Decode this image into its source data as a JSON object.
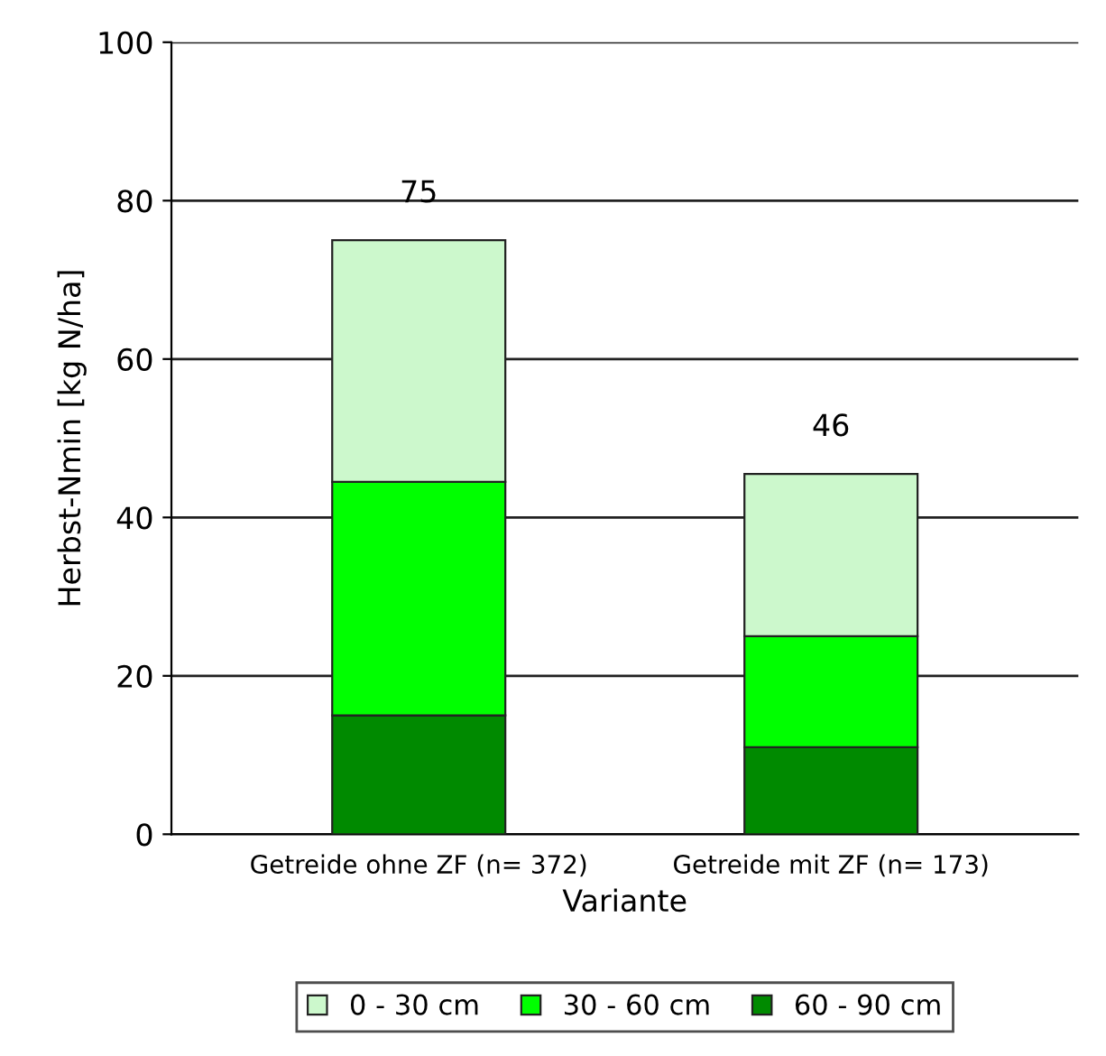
{
  "chart_data": {
    "type": "bar",
    "stacked": true,
    "xlabel": "Variante",
    "ylabel": "Herbst-Nmin [kg N/ha]",
    "categories": [
      "Getreide ohne ZF (n= 372)",
      "Getreide mit ZF (n= 173)"
    ],
    "series": [
      {
        "name": "60 - 90 cm",
        "color": "#008a00",
        "values": [
          15,
          11
        ]
      },
      {
        "name": "30 - 60 cm",
        "color": "#00ff00",
        "values": [
          29.5,
          14
        ]
      },
      {
        "name": "0 - 30 cm",
        "color": "#ccf8cc",
        "values": [
          30.5,
          20.5
        ]
      }
    ],
    "totals": [
      "75",
      "46"
    ],
    "ylim": [
      0,
      100
    ],
    "yticks": [
      0,
      20,
      40,
      60,
      80,
      100
    ],
    "grid": "y",
    "legend": "bottom"
  }
}
